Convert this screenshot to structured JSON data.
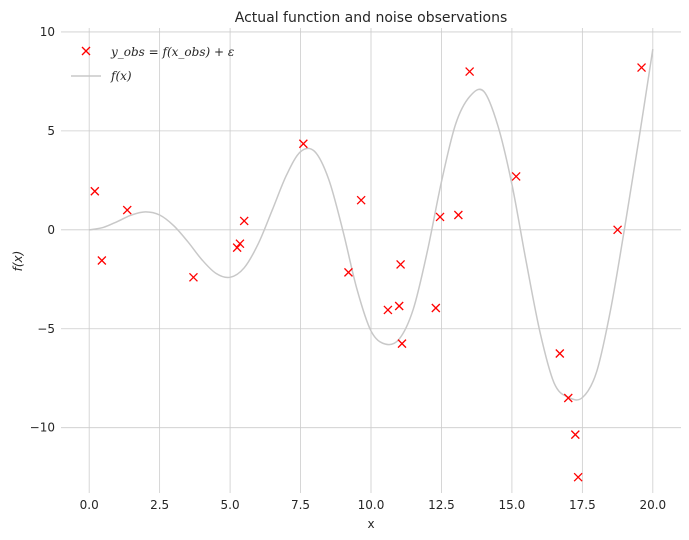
{
  "chart_data": {
    "type": "scatter",
    "title": "Actual function and noise observations",
    "xlabel": "x",
    "ylabel": "f(x)",
    "xlim": [
      -1.0,
      21.0
    ],
    "ylim": [
      -13.3,
      10.2
    ],
    "xticks": [
      0.0,
      2.5,
      5.0,
      7.5,
      10.0,
      12.5,
      15.0,
      17.5,
      20.0
    ],
    "xtick_labels": [
      "0.0",
      "2.5",
      "5.0",
      "7.5",
      "10.0",
      "12.5",
      "15.0",
      "17.5",
      "20.0"
    ],
    "yticks": [
      10,
      5,
      0,
      -5,
      -10
    ],
    "ytick_labels": [
      "10",
      "5",
      "0",
      "−5",
      "−10"
    ],
    "grid": true,
    "legend_position": "upper-left",
    "series": [
      {
        "name": "y_obs = f(x_obs) + ε",
        "kind": "scatter",
        "marker": "x",
        "color": "#ff0000",
        "x": [
          0.2,
          0.45,
          1.35,
          3.7,
          5.25,
          5.35,
          5.5,
          7.6,
          9.2,
          9.65,
          10.6,
          11.0,
          11.05,
          11.1,
          12.3,
          12.45,
          13.1,
          13.5,
          15.15,
          16.7,
          17.0,
          17.25,
          17.35,
          18.75,
          19.6
        ],
        "y": [
          1.95,
          -1.55,
          1.0,
          -2.4,
          -0.9,
          -0.7,
          0.45,
          4.35,
          -2.15,
          1.5,
          -4.05,
          -3.85,
          -1.75,
          -5.75,
          -3.95,
          0.65,
          0.75,
          8.0,
          2.7,
          -6.25,
          -8.5,
          -10.35,
          -12.5,
          0.0,
          8.2
        ]
      },
      {
        "name": "f(x)",
        "kind": "line",
        "color": "#c8c8c8",
        "x": [
          0,
          0.5,
          1.0,
          1.5,
          2.0,
          2.5,
          3.0,
          3.5,
          4.0,
          4.5,
          5.0,
          5.5,
          6.0,
          6.5,
          7.0,
          7.5,
          8.0,
          8.5,
          9.0,
          9.5,
          10.0,
          10.5,
          11.0,
          11.5,
          12.0,
          12.5,
          13.0,
          13.5,
          14.0,
          14.5,
          15.0,
          15.5,
          16.0,
          16.5,
          17.0,
          17.5,
          18.0,
          18.5,
          19.0,
          19.5,
          20.0
        ],
        "y": [
          0.0,
          0.12,
          0.42,
          0.75,
          0.91,
          0.75,
          0.21,
          -0.6,
          -1.51,
          -2.2,
          -2.4,
          -1.92,
          -0.7,
          1.01,
          2.76,
          3.95,
          3.96,
          2.55,
          -0.03,
          -2.99,
          -5.11,
          -5.77,
          -5.52,
          -4.01,
          -1.08,
          2.43,
          5.33,
          6.73,
          7.0,
          5.27,
          2.3,
          -1.56,
          -5.19,
          -7.75,
          -8.46,
          -8.48,
          -7.2,
          -4.05,
          0.1,
          4.52,
          9.13
        ]
      }
    ]
  }
}
